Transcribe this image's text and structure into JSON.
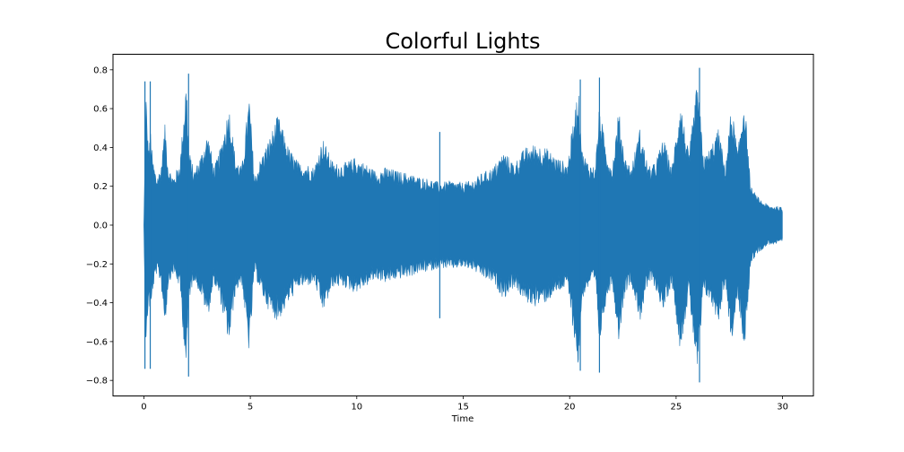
{
  "chart_data": {
    "type": "area",
    "title": "Colorful Lights",
    "xlabel": "Time",
    "ylabel": "",
    "xlim": [
      -1.45,
      31.45
    ],
    "ylim": [
      -0.88,
      0.88
    ],
    "x_ticks": [
      0,
      5,
      10,
      15,
      20,
      25,
      30
    ],
    "y_ticks": [
      0.8,
      0.6,
      0.4,
      0.2,
      0.0,
      -0.2,
      -0.4,
      -0.6,
      -0.8
    ],
    "y_tick_labels": [
      "0.8",
      "0.6",
      "0.4",
      "0.2",
      "0.0",
      "−0.2",
      "−0.4",
      "−0.6",
      "−0.8"
    ],
    "color": "#1f77b4",
    "grid": false,
    "legend": "none",
    "series": [
      {
        "envelope_time": [
          0.0,
          0.1,
          0.18,
          0.25,
          0.32,
          0.4,
          0.6,
          0.8,
          1.0,
          1.15,
          1.4,
          1.7,
          2.0,
          2.1,
          2.35,
          2.7,
          3.0,
          3.3,
          3.6,
          4.0,
          4.3,
          4.6,
          4.95,
          5.2,
          5.5,
          5.9,
          6.3,
          6.8,
          7.3,
          7.6,
          8.0,
          8.4,
          8.9,
          9.4,
          9.9,
          10.4,
          10.9,
          11.4,
          11.9,
          12.4,
          12.9,
          13.4,
          13.9,
          14.4,
          14.9,
          15.4,
          15.9,
          16.4,
          16.9,
          17.4,
          17.9,
          18.4,
          18.9,
          19.4,
          19.9,
          20.4,
          20.6,
          20.9,
          21.2,
          21.4,
          21.7,
          22.0,
          22.3,
          22.6,
          22.9,
          23.3,
          23.7,
          24.0,
          24.4,
          24.8,
          25.2,
          25.6,
          26.0,
          26.3,
          26.6,
          27.0,
          27.3,
          27.6,
          27.9,
          28.2,
          28.5,
          28.8,
          29.1,
          29.4,
          29.7,
          30.0
        ],
        "envelope_upper": [
          0.0,
          0.7,
          0.46,
          0.4,
          0.5,
          0.35,
          0.25,
          0.3,
          0.53,
          0.3,
          0.25,
          0.33,
          0.77,
          0.4,
          0.28,
          0.37,
          0.48,
          0.3,
          0.4,
          0.62,
          0.35,
          0.3,
          0.67,
          0.25,
          0.35,
          0.45,
          0.57,
          0.4,
          0.32,
          0.32,
          0.3,
          0.45,
          0.32,
          0.32,
          0.35,
          0.32,
          0.28,
          0.3,
          0.28,
          0.27,
          0.25,
          0.24,
          0.22,
          0.23,
          0.22,
          0.23,
          0.27,
          0.3,
          0.38,
          0.32,
          0.4,
          0.42,
          0.4,
          0.35,
          0.32,
          0.72,
          0.38,
          0.32,
          0.3,
          0.62,
          0.4,
          0.3,
          0.6,
          0.35,
          0.3,
          0.5,
          0.3,
          0.32,
          0.45,
          0.3,
          0.65,
          0.36,
          0.75,
          0.35,
          0.4,
          0.5,
          0.3,
          0.62,
          0.38,
          0.68,
          0.2,
          0.15,
          0.12,
          0.1,
          0.1,
          0.09
        ],
        "envelope_lower": [
          0.0,
          -0.72,
          -0.46,
          -0.4,
          -0.5,
          -0.35,
          -0.25,
          -0.3,
          -0.53,
          -0.3,
          -0.25,
          -0.33,
          -0.78,
          -0.4,
          -0.28,
          -0.37,
          -0.48,
          -0.3,
          -0.4,
          -0.62,
          -0.35,
          -0.3,
          -0.67,
          -0.25,
          -0.35,
          -0.45,
          -0.5,
          -0.4,
          -0.32,
          -0.32,
          -0.3,
          -0.45,
          -0.32,
          -0.32,
          -0.35,
          -0.32,
          -0.28,
          -0.3,
          -0.28,
          -0.27,
          -0.25,
          -0.24,
          -0.22,
          -0.23,
          -0.22,
          -0.23,
          -0.27,
          -0.3,
          -0.38,
          -0.32,
          -0.4,
          -0.42,
          -0.4,
          -0.35,
          -0.32,
          -0.74,
          -0.38,
          -0.32,
          -0.3,
          -0.62,
          -0.4,
          -0.3,
          -0.6,
          -0.35,
          -0.3,
          -0.5,
          -0.3,
          -0.32,
          -0.45,
          -0.3,
          -0.65,
          -0.36,
          -0.78,
          -0.35,
          -0.4,
          -0.5,
          -0.3,
          -0.62,
          -0.38,
          -0.68,
          -0.2,
          -0.15,
          -0.12,
          -0.1,
          -0.1,
          -0.09
        ],
        "spikes": [
          {
            "t": 0.05,
            "upper": 0.74,
            "lower": -0.74
          },
          {
            "t": 0.3,
            "upper": 0.74,
            "lower": -0.74
          },
          {
            "t": 2.1,
            "upper": 0.78,
            "lower": -0.78
          },
          {
            "t": 13.9,
            "upper": 0.48,
            "lower": -0.48
          },
          {
            "t": 20.5,
            "upper": 0.75,
            "lower": -0.75
          },
          {
            "t": 21.4,
            "upper": 0.76,
            "lower": -0.76
          },
          {
            "t": 26.1,
            "upper": 0.81,
            "lower": -0.81
          }
        ]
      }
    ]
  }
}
